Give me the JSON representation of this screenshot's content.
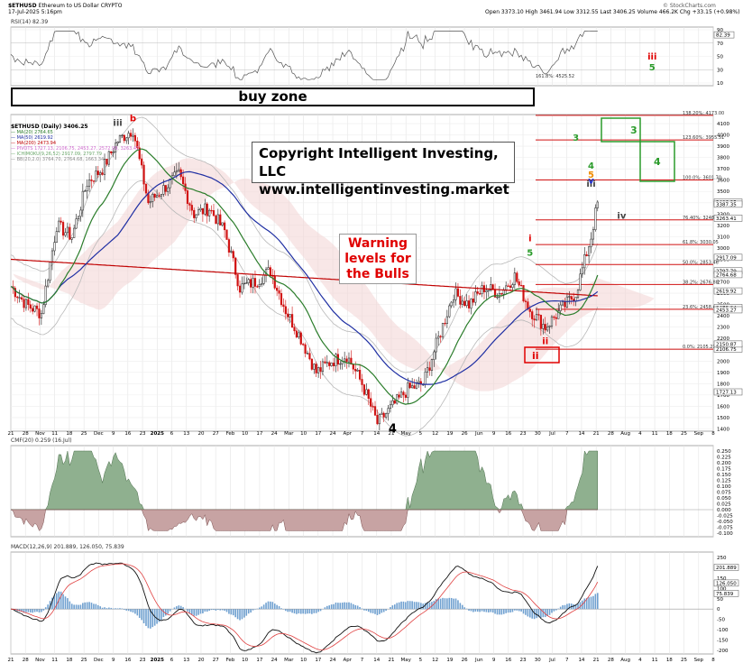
{
  "header": {
    "symbol": "$ETHUSD",
    "name": "Ethereum to US Dollar",
    "asset_class": "CRYPTO",
    "date_time": "17-Jul-2025 5:16pm",
    "ohlc": "Open 3373.10  High 3461.94  Low 3312.55  Last 3406.25  Volume 466.2K  Chg +33.15 (+0.98%)",
    "watermark": "© StockCharts.com"
  },
  "rsi_panel": {
    "label": "RSI(14) 82.39",
    "ticks": [
      "90",
      "70",
      "50",
      "30",
      "10"
    ],
    "fib_label": "161.8%: 4525.52",
    "badge": "82.39"
  },
  "price_panel": {
    "title": "$ETHUSD (Daily) 3406.25",
    "legend": [
      {
        "text": "MA(20) 2764.65",
        "color": "#2b7d2b"
      },
      {
        "text": "MA(50) 2619.92",
        "color": "#1f2fa3"
      },
      {
        "text": "MA(200) 2473.94",
        "color": "#c00000"
      },
      {
        "text": "PIVOTS 1727.13, 2106.75, 2453.27, 2572.99, 3263.41",
        "color": "#cc66cc"
      },
      {
        "text": "ICHIMOKU(9,26,52) 2917.09, 2797.79",
        "color": "#6aa86a"
      },
      {
        "text": "BB(20,2.0) 3764.70, 2764.68, 1663.34",
        "color": "#888888"
      }
    ],
    "y_ticks": [
      "4100",
      "4000",
      "3900",
      "3800",
      "3700",
      "3600",
      "3500",
      "3400",
      "3300",
      "3200",
      "3100",
      "3000",
      "2900",
      "2800",
      "2700",
      "2600",
      "2500",
      "2400",
      "2300",
      "2200",
      "2100",
      "2000",
      "1900",
      "1800",
      "1700",
      "1600",
      "1500",
      "1400"
    ],
    "fib_levels": [
      {
        "label": "138.20%: 4173.00",
        "price": 4173
      },
      {
        "label": "123.60%: 3955.51",
        "price": 3955.51
      },
      {
        "label": "100.0%: 3601.70",
        "price": 3601.7
      },
      {
        "label": "76.40%: 3248.53",
        "price": 3248.53
      },
      {
        "label": "61.8%: 3030.05",
        "price": 3030.05
      },
      {
        "label": "50.0%: 2853.46",
        "price": 2853.46
      },
      {
        "label": "38.2%: 2676.88",
        "price": 2676.88
      },
      {
        "label": "23.6%: 2458.40",
        "price": 2458.4
      },
      {
        "label": "0.0%: 2105.23",
        "price": 2105.23
      }
    ],
    "right_badges": [
      "3406.25",
      "3387.35",
      "3263.41",
      "2917.09",
      "2797.79",
      "2764.68",
      "2619.92",
      "2473.94",
      "2453.27",
      "2106.75",
      "2150.87",
      "1727.13"
    ],
    "buy_zone": "buy zone",
    "copyright_line1": "Copyright Intelligent Investing, LLC",
    "copyright_line2": "www.intelligentinvesting.market",
    "warning_line1": "Warning",
    "warning_line2": "levels for",
    "warning_line3": "the Bulls"
  },
  "cmf_panel": {
    "label": "CMF(20) 0.259 (16.Jul)",
    "ticks": [
      "0.250",
      "0.225",
      "0.200",
      "0.175",
      "0.150",
      "0.125",
      "0.100",
      "0.075",
      "0.050",
      "0.025",
      "0.000",
      "-0.025",
      "-0.050",
      "-0.075",
      "-0.100"
    ]
  },
  "macd_panel": {
    "label": "MACD(12,26,9) 201.889, 126.050, 75.839",
    "ticks": [
      "250",
      "200",
      "150",
      "100",
      "50",
      "0",
      "-50",
      "-100",
      "-150",
      "-200"
    ],
    "badges": [
      "201.889",
      "126.050",
      "75.839"
    ]
  },
  "x_axis": {
    "labels": [
      "21",
      "28",
      "Nov",
      "11",
      "18",
      "25",
      "Dec",
      "9",
      "16",
      "23",
      "2025",
      "6",
      "13",
      "20",
      "27",
      "Feb",
      "10",
      "17",
      "24",
      "Mar",
      "10",
      "17",
      "24",
      "Apr",
      "7",
      "14",
      "21",
      "May",
      "5",
      "12",
      "19",
      "26",
      "Jun",
      "9",
      "16",
      "23",
      "30",
      "Jul",
      "7",
      "14",
      "21",
      "28",
      "Aug",
      "4",
      "11",
      "18",
      "25",
      "Sep",
      "8"
    ]
  },
  "wave_labels": [
    {
      "text": "b",
      "color": "#e00000"
    },
    {
      "text": "iii",
      "color": "#444"
    },
    {
      "text": "4",
      "color": "#000"
    },
    {
      "text": "i",
      "color": "#e00000"
    },
    {
      "text": "5",
      "color": "#2b9b2b"
    },
    {
      "text": "ii",
      "color": "#e00000"
    },
    {
      "text": "iii",
      "color": "#e00000"
    },
    {
      "text": "5",
      "color": "#2b9b2b"
    },
    {
      "text": "3",
      "color": "#2b9b2b"
    },
    {
      "text": "4",
      "color": "#2b9b2b"
    },
    {
      "text": "iii",
      "color": "#444"
    },
    {
      "text": "5",
      "color": "#f08c00"
    },
    {
      "text": "v",
      "color": "#1f2fd0"
    },
    {
      "text": "iv",
      "color": "#444"
    }
  ],
  "chart_data": {
    "type": "candlestick",
    "title": "$ETHUSD (Daily) 3406.25",
    "x_range": [
      "Oct 21 2024",
      "Sep 8 2025"
    ],
    "ylim": [
      1380,
      4180
    ],
    "close_path": [
      [
        "2024-10-21",
        2660
      ],
      [
        "2024-10-28",
        2500
      ],
      [
        "2024-11-04",
        2420
      ],
      [
        "2024-11-11",
        3200
      ],
      [
        "2024-11-18",
        3100
      ],
      [
        "2024-11-25",
        3580
      ],
      [
        "2024-12-02",
        3700
      ],
      [
        "2024-12-09",
        3950
      ],
      [
        "2024-12-16",
        4050
      ],
      [
        "2024-12-23",
        3400
      ],
      [
        "2025-01-06",
        3650
      ],
      [
        "2025-01-13",
        3300
      ],
      [
        "2025-01-20",
        3350
      ],
      [
        "2025-01-27",
        3150
      ],
      [
        "2025-02-03",
        2650
      ],
      [
        "2025-02-10",
        2700
      ],
      [
        "2025-02-17",
        2800
      ],
      [
        "2025-02-24",
        2450
      ],
      [
        "2025-03-03",
        2200
      ],
      [
        "2025-03-10",
        1900
      ],
      [
        "2025-03-17",
        2000
      ],
      [
        "2025-03-24",
        2050
      ],
      [
        "2025-03-31",
        1800
      ],
      [
        "2025-04-07",
        1450
      ],
      [
        "2025-04-14",
        1600
      ],
      [
        "2025-04-21",
        1750
      ],
      [
        "2025-04-28",
        1800
      ],
      [
        "2025-05-05",
        2200
      ],
      [
        "2025-05-12",
        2600
      ],
      [
        "2025-05-19",
        2500
      ],
      [
        "2025-05-26",
        2650
      ],
      [
        "2025-06-02",
        2600
      ],
      [
        "2025-06-09",
        2750
      ],
      [
        "2025-06-16",
        2450
      ],
      [
        "2025-06-23",
        2300
      ],
      [
        "2025-06-30",
        2450
      ],
      [
        "2025-07-07",
        2600
      ],
      [
        "2025-07-14",
        3100
      ],
      [
        "2025-07-17",
        3406.25
      ]
    ],
    "series": [
      {
        "name": "MA(20)",
        "last": 2764.65
      },
      {
        "name": "MA(50)",
        "last": 2619.92
      },
      {
        "name": "MA(200)",
        "last": 2473.94
      }
    ]
  }
}
